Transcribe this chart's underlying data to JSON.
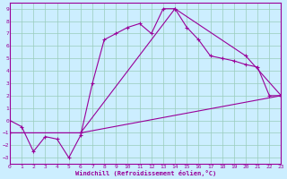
{
  "xlabel": "Windchill (Refroidissement éolien,°C)",
  "bg_color": "#cceeff",
  "line_color": "#990099",
  "grid_color": "#99ccbb",
  "xlim": [
    0,
    23
  ],
  "ylim": [
    -3.5,
    9.5
  ],
  "xticks": [
    0,
    1,
    2,
    3,
    4,
    5,
    6,
    7,
    8,
    9,
    10,
    11,
    12,
    13,
    14,
    15,
    16,
    17,
    18,
    19,
    20,
    21,
    22,
    23
  ],
  "yticks": [
    -3,
    -2,
    -1,
    0,
    1,
    2,
    3,
    4,
    5,
    6,
    7,
    8,
    9
  ],
  "line1_x": [
    0,
    1,
    2,
    3,
    4,
    5,
    6,
    7,
    8,
    9,
    10,
    11,
    12,
    13,
    14,
    15,
    16,
    17,
    18,
    19,
    20,
    21,
    22,
    23
  ],
  "line1_y": [
    0.0,
    -0.5,
    -2.5,
    -1.3,
    -1.5,
    -3.0,
    -1.2,
    3.0,
    6.5,
    7.0,
    7.5,
    7.8,
    7.0,
    9.0,
    9.0,
    7.5,
    6.5,
    5.2,
    5.0,
    4.8,
    4.5,
    4.3,
    2.0,
    2.0
  ],
  "line2_x": [
    0,
    6,
    14,
    20,
    23
  ],
  "line2_y": [
    -1.0,
    -1.0,
    9.0,
    5.2,
    2.0
  ],
  "line3_x": [
    0,
    6,
    23
  ],
  "line3_y": [
    -1.0,
    -1.0,
    2.0
  ]
}
